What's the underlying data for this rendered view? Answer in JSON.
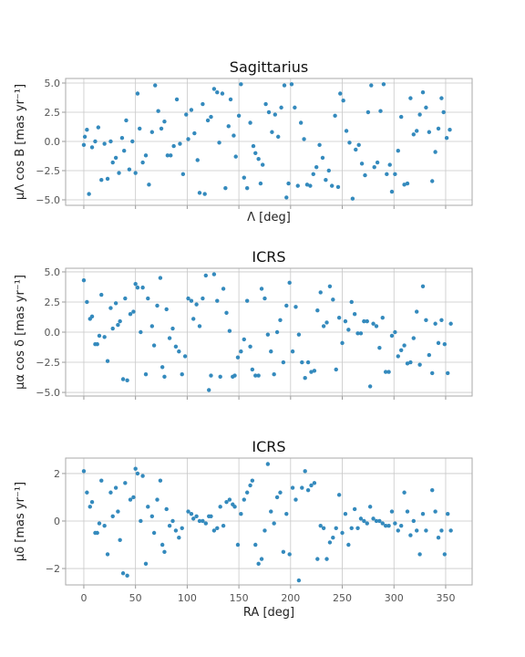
{
  "chart_data": [
    {
      "type": "scatter",
      "title": "Sagittarius",
      "x_label": "Λ [deg]",
      "y_label": "μΛ cos B [mas yr⁻¹]",
      "color": "#348abd",
      "grid": true,
      "xlim": [
        -17.6,
        375.6
      ],
      "xticks": [
        0,
        50,
        100,
        150,
        200,
        250,
        300,
        350
      ],
      "ylim": [
        -5.47,
        5.39
      ],
      "yticks": [
        {
          "value": -5,
          "label": "−5.0"
        },
        {
          "value": -2.5,
          "label": "−2.5"
        },
        {
          "value": 0,
          "label": "0.0"
        },
        {
          "value": 2.5,
          "label": "2.5"
        },
        {
          "value": 5,
          "label": "5.0"
        }
      ],
      "x": [
        0,
        1,
        3,
        5,
        8,
        11,
        14,
        17,
        20,
        23,
        26,
        28,
        31,
        34,
        37,
        39,
        41,
        44,
        47,
        50,
        52,
        54,
        57,
        60,
        63,
        66,
        69,
        72,
        75,
        78,
        81,
        84,
        87,
        90,
        93,
        96,
        99,
        101,
        104,
        107,
        110,
        112,
        115,
        117,
        120,
        123,
        126,
        129,
        131,
        134,
        137,
        140,
        142,
        145,
        147,
        150,
        152,
        155,
        158,
        161,
        164,
        166,
        169,
        171,
        173,
        176,
        179,
        182,
        185,
        188,
        191,
        194,
        196,
        198,
        201,
        204,
        207,
        210,
        213,
        216,
        219,
        222,
        225,
        228,
        231,
        234,
        237,
        240,
        243,
        246,
        248,
        251,
        254,
        257,
        260,
        263,
        266,
        269,
        272,
        275,
        278,
        281,
        284,
        287,
        290,
        293,
        296,
        298,
        301,
        304,
        307,
        310,
        313,
        316,
        319,
        322,
        325,
        328,
        331,
        334,
        337,
        340,
        343,
        346,
        348,
        351,
        354
      ],
      "values": [
        -0.3,
        0.4,
        1,
        -4.5,
        -0.5,
        0,
        1.2,
        -3.3,
        -0.2,
        -3.2,
        0,
        -1.8,
        -1.4,
        -2.7,
        0.3,
        -0.8,
        1.8,
        -2.4,
        0,
        -2.7,
        4.1,
        1.1,
        -1.8,
        -1.2,
        -3.7,
        0.8,
        4.8,
        2.6,
        1.1,
        1.7,
        -1.2,
        -1.2,
        -0.4,
        3.6,
        -0.2,
        -2.8,
        2.3,
        0.2,
        2.7,
        0.7,
        -1.6,
        -4.4,
        3.2,
        -4.5,
        1.8,
        2.1,
        4.5,
        4.2,
        -0.1,
        4.1,
        -4,
        1.3,
        3.6,
        0.5,
        -1.3,
        2.2,
        4.9,
        -3.1,
        -4,
        1.6,
        -0.4,
        -1,
        -1.5,
        -3.6,
        -2,
        3.2,
        2.5,
        0.8,
        2.3,
        0.4,
        2.9,
        4.8,
        -4.8,
        -3.6,
        4.9,
        2.9,
        -3.8,
        1.6,
        0.2,
        -3.7,
        -3.8,
        -2.8,
        -2.2,
        -0.3,
        -1.4,
        -3.3,
        -2.5,
        -3.8,
        2.2,
        -3.9,
        4.1,
        3.5,
        0.9,
        -0.1,
        -4.9,
        -0.7,
        -0.3,
        -1.9,
        -2.9,
        2.5,
        4.8,
        -2.2,
        -1.8,
        2.6,
        4.9,
        -2.8,
        -2,
        -4.3,
        -2.8,
        -0.8,
        2.1,
        -3.7,
        -3.6,
        3.7,
        0.6,
        0.9,
        2.3,
        4.2,
        2.9,
        0.8,
        -3.4,
        -0.9,
        1.1,
        3.7,
        2.5,
        0.3,
        1
      ]
    },
    {
      "type": "scatter",
      "title": "ICRS",
      "y_label": "μα cos δ [mas yr⁻¹]",
      "color": "#348abd",
      "grid": true,
      "xlim": [
        -17.6,
        375.6
      ],
      "xticks": [
        0,
        50,
        100,
        150,
        200,
        250,
        300,
        350
      ],
      "ylim": [
        -5.3,
        5.3
      ],
      "yticks": [
        {
          "value": -5,
          "label": "−5.0"
        },
        {
          "value": -2.5,
          "label": "−2.5"
        },
        {
          "value": 0,
          "label": "0.0"
        },
        {
          "value": 2.5,
          "label": "2.5"
        },
        {
          "value": 5,
          "label": "5.0"
        }
      ],
      "x": [
        0,
        3,
        6,
        8,
        11,
        13,
        15,
        17,
        20,
        23,
        26,
        28,
        31,
        33,
        35,
        38,
        40,
        42,
        45,
        48,
        50,
        52,
        55,
        57,
        60,
        62,
        66,
        68,
        71,
        74,
        76,
        78,
        80,
        83,
        86,
        89,
        92,
        95,
        98,
        101,
        104,
        106,
        109,
        112,
        115,
        118,
        121,
        123,
        126,
        129,
        132,
        135,
        138,
        141,
        144,
        146,
        149,
        152,
        155,
        158,
        161,
        163,
        166,
        169,
        172,
        175,
        178,
        181,
        184,
        187,
        190,
        193,
        196,
        199,
        202,
        205,
        208,
        211,
        214,
        217,
        220,
        223,
        226,
        229,
        232,
        235,
        238,
        241,
        244,
        247,
        250,
        253,
        256,
        259,
        262,
        265,
        268,
        271,
        274,
        277,
        280,
        283,
        286,
        289,
        292,
        295,
        298,
        301,
        304,
        307,
        310,
        313,
        316,
        319,
        322,
        325,
        328,
        331,
        334,
        337,
        340,
        343,
        346,
        349,
        352,
        355
      ],
      "values": [
        4.3,
        2.5,
        1.1,
        1.3,
        -1,
        -1,
        -0.3,
        3.1,
        -0.4,
        -2.4,
        2,
        0.3,
        2.4,
        0.6,
        0.9,
        -3.9,
        2.8,
        -4,
        1.5,
        1.7,
        4,
        3.7,
        0,
        3.7,
        -3.5,
        2.8,
        0.5,
        -1.1,
        2.2,
        4.5,
        -2.9,
        -3.7,
        1.9,
        -0.5,
        0.3,
        -1.2,
        -1.6,
        -3.5,
        -2,
        2.8,
        2.6,
        1.1,
        2.3,
        0.5,
        2.8,
        4.7,
        -4.8,
        -3.6,
        4.8,
        2.6,
        -3.7,
        3.6,
        1.6,
        0.1,
        -3.7,
        -3.6,
        -2.1,
        -1.6,
        -0.6,
        2.6,
        -1.2,
        -3.1,
        -3.6,
        -3.6,
        3.6,
        2.8,
        -0.2,
        -1.6,
        -3.5,
        0,
        1,
        -2.5,
        2.2,
        4.1,
        -1.6,
        2.1,
        -0.2,
        -2.5,
        -3.8,
        -2.5,
        -3.3,
        -3.2,
        1.8,
        3.3,
        0.5,
        0.8,
        3.8,
        2.7,
        -3.1,
        1.2,
        -0.9,
        0.9,
        0.2,
        2.5,
        1.5,
        -0.1,
        -0.1,
        0.9,
        0.9,
        -4.5,
        0.7,
        0.5,
        -1.3,
        1.2,
        -3.3,
        -3.3,
        -0.3,
        0,
        -2,
        -1.5,
        -1.1,
        -2.6,
        -2.5,
        -0.5,
        1.7,
        -2.7,
        3.8,
        1,
        -1.9,
        -3.4,
        0.7,
        -0.9,
        1,
        -1,
        -3.4,
        0.7
      ]
    },
    {
      "type": "scatter",
      "title": "ICRS",
      "x_label": "RA [deg]",
      "y_label": "μδ [mas yr⁻¹]",
      "color": "#348abd",
      "grid": true,
      "show_xtick_labels": true,
      "xlim": [
        -17.6,
        375.6
      ],
      "xticks": [
        0,
        50,
        100,
        150,
        200,
        250,
        300,
        350
      ],
      "ylim": [
        -2.69,
        2.65
      ],
      "yticks": [
        {
          "value": -2,
          "label": "−2"
        },
        0,
        2
      ],
      "x": [
        0,
        3,
        6,
        8,
        11,
        13,
        15,
        17,
        20,
        23,
        26,
        28,
        31,
        33,
        35,
        38,
        40,
        42,
        45,
        48,
        50,
        52,
        55,
        57,
        60,
        62,
        66,
        68,
        71,
        74,
        76,
        78,
        80,
        83,
        86,
        89,
        92,
        95,
        101,
        104,
        106,
        109,
        112,
        115,
        118,
        121,
        123,
        126,
        129,
        132,
        135,
        138,
        141,
        144,
        146,
        149,
        152,
        155,
        158,
        161,
        163,
        166,
        169,
        172,
        175,
        178,
        181,
        184,
        187,
        190,
        193,
        196,
        199,
        202,
        205,
        208,
        211,
        214,
        217,
        220,
        223,
        226,
        229,
        232,
        235,
        238,
        241,
        244,
        247,
        250,
        253,
        256,
        259,
        262,
        265,
        268,
        271,
        274,
        277,
        280,
        283,
        286,
        289,
        292,
        295,
        298,
        301,
        304,
        307,
        310,
        313,
        316,
        319,
        322,
        325,
        328,
        331,
        337,
        340,
        343,
        346,
        349,
        352,
        355
      ],
      "values": [
        2.1,
        1.2,
        0.6,
        0.8,
        -0.5,
        -0.5,
        -0.1,
        1.7,
        -0.2,
        -1.4,
        1.2,
        0.2,
        1.4,
        0.4,
        -0.8,
        -2.2,
        1.6,
        -2.3,
        0.9,
        1,
        2.2,
        2,
        0,
        1.9,
        -1.8,
        0.6,
        0.2,
        -0.5,
        0.9,
        1.7,
        -1,
        -1.3,
        0.5,
        -0.2,
        0,
        -0.4,
        -0.7,
        -0.3,
        0.4,
        0.3,
        0.1,
        0.2,
        0,
        0,
        -0.1,
        0.2,
        0.2,
        -0.4,
        -0.3,
        0.6,
        -0.2,
        0.8,
        0.9,
        0.7,
        0.6,
        -1,
        0.3,
        0.9,
        1.2,
        1.5,
        1.7,
        -1,
        -1.8,
        -1.6,
        -0.4,
        2.4,
        0.4,
        -0.1,
        1,
        1.2,
        -1.3,
        0.3,
        -1.4,
        1.4,
        0.9,
        -2.5,
        1.4,
        2.1,
        1.3,
        1.5,
        1.6,
        -1.6,
        -0.2,
        -0.3,
        -1.6,
        -0.9,
        -0.7,
        -0.3,
        1.1,
        -0.5,
        0.3,
        -1,
        -0.3,
        0.5,
        -0.3,
        0.1,
        0,
        -0.1,
        0.6,
        0.1,
        0,
        0,
        -0.1,
        -0.2,
        -0.2,
        0.4,
        -0.1,
        -0.4,
        -0.2,
        1.2,
        0.4,
        -0.6,
        0,
        -0.4,
        -1.4,
        0.3,
        -0.4,
        1.3,
        0.4,
        -0.7,
        -0.4,
        -1.4,
        0.3,
        -0.4
      ]
    }
  ]
}
